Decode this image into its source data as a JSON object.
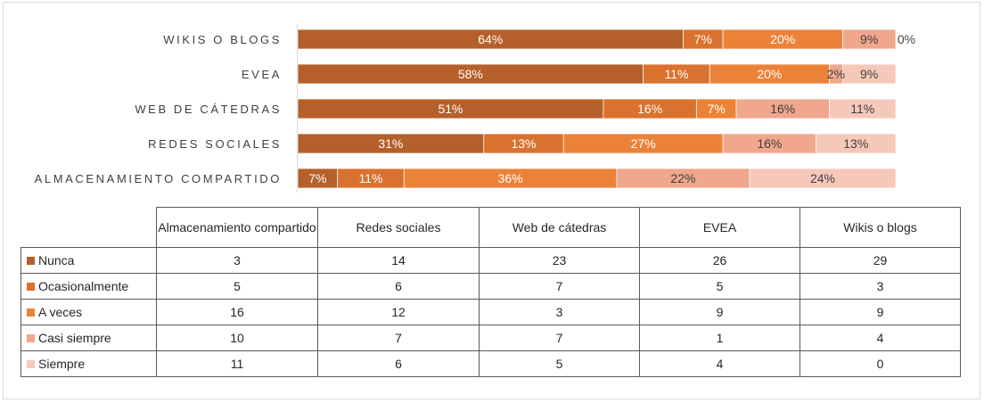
{
  "chart_data": {
    "type": "bar",
    "orientation": "horizontal",
    "stacked": "percent",
    "categories": [
      "Wikis o blogs",
      "EVEA",
      "Web de cátedras",
      "Redes sociales",
      "Almacenamiento compartido"
    ],
    "category_axis_labels": [
      "WIKIS O BLOGS",
      "EVEA",
      "WEB DE CÁTEDRAS",
      "REDES SOCIALES",
      "ALMACENAMIENTO COMPARTIDO"
    ],
    "series": [
      {
        "name": "Nunca",
        "color": "#b5602a",
        "values": [
          29,
          26,
          23,
          14,
          3
        ],
        "labels": [
          "64%",
          "58%",
          "51%",
          "31%",
          "7%"
        ]
      },
      {
        "name": "Ocasionalmente",
        "color": "#d9722f",
        "values": [
          3,
          5,
          7,
          6,
          5
        ],
        "labels": [
          "7%",
          "11%",
          "16%",
          "13%",
          "11%"
        ]
      },
      {
        "name": "A veces",
        "color": "#ec8238",
        "values": [
          9,
          9,
          3,
          12,
          16
        ],
        "labels": [
          "20%",
          "20%",
          "7%",
          "27%",
          "36%"
        ]
      },
      {
        "name": "Casi siempre",
        "color": "#f0a78c",
        "values": [
          4,
          1,
          7,
          7,
          10
        ],
        "labels": [
          "9%",
          "2%",
          "16%",
          "16%",
          "22%"
        ]
      },
      {
        "name": "Siempre",
        "color": "#f6c8ba",
        "values": [
          0,
          4,
          5,
          6,
          11
        ],
        "labels": [
          "0%",
          "9%",
          "11%",
          "13%",
          "24%"
        ]
      }
    ],
    "label_colors": [
      "#ffffff",
      "#ffffff",
      "#ffffff",
      "#404040",
      "#404040"
    ],
    "xlim": [
      0,
      1
    ]
  },
  "table": {
    "columns": [
      "Almacenamiento compartido",
      "Redes sociales",
      "Web de cátedras",
      "EVEA",
      "Wikis o blogs"
    ],
    "rows": [
      {
        "label": "Nunca",
        "color": "#b5602a",
        "values": [
          "3",
          "14",
          "23",
          "26",
          "29"
        ]
      },
      {
        "label": "Ocasionalmente",
        "color": "#d9722f",
        "values": [
          "5",
          "6",
          "7",
          "5",
          "3"
        ]
      },
      {
        "label": "A veces",
        "color": "#ec8238",
        "values": [
          "16",
          "12",
          "3",
          "9",
          "9"
        ]
      },
      {
        "label": "Casi siempre",
        "color": "#f0a78c",
        "values": [
          "10",
          "7",
          "7",
          "1",
          "4"
        ]
      },
      {
        "label": "Siempre",
        "color": "#f6c8ba",
        "values": [
          "11",
          "6",
          "5",
          "4",
          "0"
        ]
      }
    ]
  }
}
